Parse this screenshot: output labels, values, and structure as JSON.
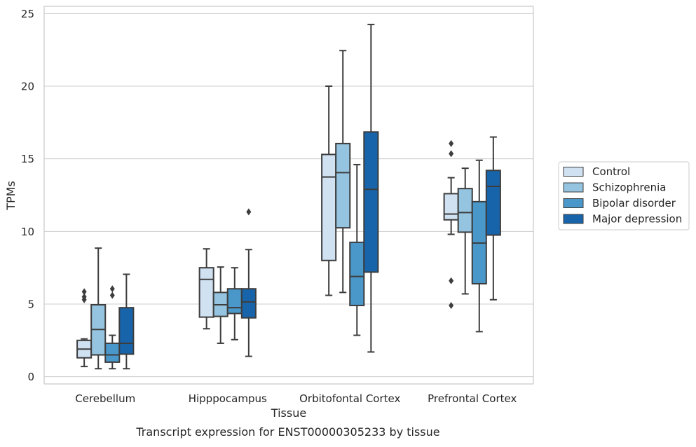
{
  "caption": "Transcript expression for ENST00000305233 by tissue",
  "chart_data": {
    "type": "box",
    "xlabel": "Tissue",
    "ylabel": "TPMs",
    "ylim": [
      -0.5,
      25.5
    ],
    "yticks": [
      0,
      5,
      10,
      15,
      20,
      25
    ],
    "grid": "horizontal",
    "legend_position": "right, outside plot",
    "categories": [
      "Cerebellum",
      "Hipppocampus",
      "Orbitofontal Cortex",
      "Prefrontal Cortex"
    ],
    "series": [
      {
        "name": "Control",
        "color": "#d0e1f2",
        "boxes": [
          {
            "whislo": 0.7,
            "q1": 1.3,
            "med": 1.9,
            "q3": 2.5,
            "whishi": 2.6,
            "fliers": [
              5.3,
              5.5,
              5.85
            ]
          },
          {
            "whislo": 3.3,
            "q1": 4.1,
            "med": 6.7,
            "q3": 7.5,
            "whishi": 8.8,
            "fliers": []
          },
          {
            "whislo": 5.6,
            "q1": 8.0,
            "med": 13.75,
            "q3": 15.3,
            "whishi": 20.0,
            "fliers": []
          },
          {
            "whislo": 9.8,
            "q1": 10.8,
            "med": 11.2,
            "q3": 12.6,
            "whishi": 13.7,
            "fliers": [
              4.9,
              6.6,
              15.35,
              16.05
            ]
          }
        ]
      },
      {
        "name": "Schizophrenia",
        "color": "#94c4df",
        "boxes": [
          {
            "whislo": 0.55,
            "q1": 1.5,
            "med": 3.25,
            "q3": 4.95,
            "whishi": 8.85,
            "fliers": []
          },
          {
            "whislo": 2.3,
            "q1": 4.15,
            "med": 4.95,
            "q3": 5.8,
            "whishi": 7.55,
            "fliers": []
          },
          {
            "whislo": 5.8,
            "q1": 10.25,
            "med": 14.05,
            "q3": 16.05,
            "whishi": 22.45,
            "fliers": []
          },
          {
            "whislo": 5.7,
            "q1": 9.95,
            "med": 11.3,
            "q3": 12.95,
            "whishi": 14.35,
            "fliers": []
          }
        ]
      },
      {
        "name": "Bipolar disorder",
        "color": "#4a98c9",
        "boxes": [
          {
            "whislo": 0.55,
            "q1": 1.0,
            "med": 1.5,
            "q3": 2.3,
            "whishi": 2.85,
            "fliers": [
              5.6,
              6.05
            ]
          },
          {
            "whislo": 2.55,
            "q1": 4.35,
            "med": 4.75,
            "q3": 6.05,
            "whishi": 7.5,
            "fliers": []
          },
          {
            "whislo": 2.85,
            "q1": 4.9,
            "med": 6.9,
            "q3": 9.25,
            "whishi": 14.6,
            "fliers": []
          },
          {
            "whislo": 3.1,
            "q1": 6.4,
            "med": 9.2,
            "q3": 12.05,
            "whishi": 14.9,
            "fliers": []
          }
        ]
      },
      {
        "name": "Major depression",
        "color": "#1764ab",
        "boxes": [
          {
            "whislo": 0.55,
            "q1": 1.55,
            "med": 2.3,
            "q3": 4.75,
            "whishi": 7.05,
            "fliers": []
          },
          {
            "whislo": 1.4,
            "q1": 4.05,
            "med": 5.15,
            "q3": 6.05,
            "whishi": 8.75,
            "fliers": [
              11.35
            ]
          },
          {
            "whislo": 1.7,
            "q1": 7.2,
            "med": 12.9,
            "q3": 16.85,
            "whishi": 24.25,
            "fliers": []
          },
          {
            "whislo": 5.3,
            "q1": 9.75,
            "med": 13.1,
            "q3": 14.2,
            "whishi": 16.5,
            "fliers": []
          }
        ]
      }
    ]
  }
}
